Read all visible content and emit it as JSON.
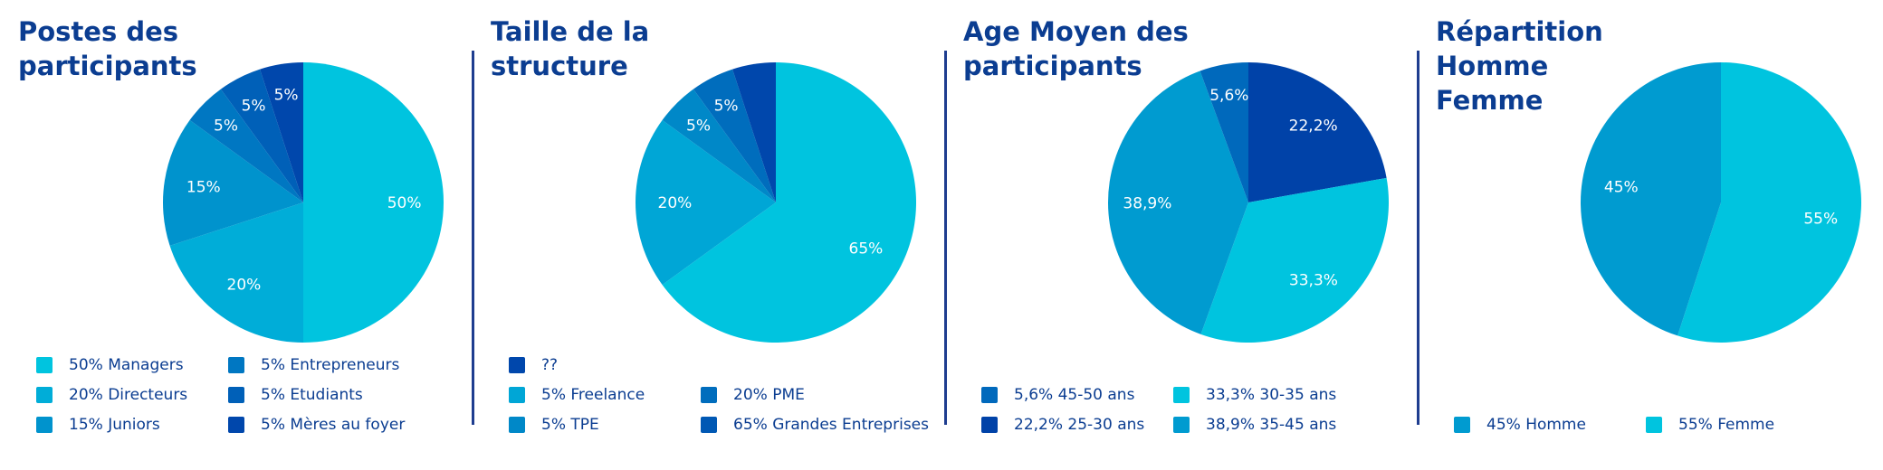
{
  "colors": {
    "title": "#0b3d91",
    "divider": "#1e3d8f"
  },
  "chart_data": [
    {
      "type": "pie",
      "title": "Postes des\nparticipants",
      "slices": [
        {
          "label": "50%",
          "value": 50,
          "color": "#00c4df"
        },
        {
          "label": "20%",
          "value": 20,
          "color": "#00add8"
        },
        {
          "label": "15%",
          "value": 15,
          "color": "#0093cd"
        },
        {
          "label": "5%",
          "value": 5,
          "color": "#0077c2"
        },
        {
          "label": "5%",
          "value": 5,
          "color": "#0060b8"
        },
        {
          "label": "5%",
          "value": 5,
          "color": "#0047ac"
        }
      ],
      "legend": [
        {
          "text": "50% Managers",
          "color": "#00c4df"
        },
        {
          "text": "20% Directeurs",
          "color": "#00add8"
        },
        {
          "text": "15% Juniors",
          "color": "#0093cd"
        },
        {
          "text": "5% Entrepreneurs",
          "color": "#0077c2"
        },
        {
          "text": "5% Etudiants",
          "color": "#0060b8"
        },
        {
          "text": "5% Mères au foyer",
          "color": "#0047ac"
        }
      ]
    },
    {
      "type": "pie",
      "title": "Taille de la\nstructure",
      "slices": [
        {
          "label": "65%",
          "value": 65,
          "color": "#00c4df"
        },
        {
          "label": "20%",
          "value": 20,
          "color": "#00a6d6"
        },
        {
          "label": "5%",
          "value": 5,
          "color": "#0088c8"
        },
        {
          "label": "5%",
          "value": 5,
          "color": "#006dbd"
        },
        {
          "label": "",
          "value": 5,
          "color": "#0047ac"
        }
      ],
      "legend": [
        {
          "text": "??",
          "color": "#0047ac"
        },
        {
          "text": "5% Freelance",
          "color": "#00a6d6"
        },
        {
          "text": "5% TPE",
          "color": "#0088c8"
        },
        {
          "text": "20% PME",
          "color": "#006dbd"
        },
        {
          "text": "65% Grandes Entreprises",
          "color": "#0058b4"
        }
      ]
    },
    {
      "type": "pie",
      "title": "Age Moyen des\nparticipants",
      "slices": [
        {
          "label": "22,2%",
          "value": 22.2,
          "color": "#0042a8"
        },
        {
          "label": "33,3%",
          "value": 33.3,
          "color": "#00c4df"
        },
        {
          "label": "38,9%",
          "value": 38.9,
          "color": "#009bd0"
        },
        {
          "label": "5,6%",
          "value": 5.6,
          "color": "#0069bc"
        }
      ],
      "legend": [
        {
          "text": "5,6% 45-50 ans",
          "color": "#0069bc"
        },
        {
          "text": "22,2% 25-30 ans",
          "color": "#0042a8"
        },
        {
          "text": "33,3% 30-35 ans",
          "color": "#00c4df"
        },
        {
          "text": "38,9% 35-45 ans",
          "color": "#009bd0"
        }
      ]
    },
    {
      "type": "pie",
      "title": "Répartition\nHomme\nFemme",
      "slices": [
        {
          "label": "55%",
          "value": 55,
          "color": "#00c4df"
        },
        {
          "label": "45%",
          "value": 45,
          "color": "#009bd0"
        }
      ],
      "legend": [
        {
          "text": "45% Homme",
          "color": "#009bd0"
        },
        {
          "text": "55% Femme",
          "color": "#00c4df"
        }
      ]
    }
  ]
}
